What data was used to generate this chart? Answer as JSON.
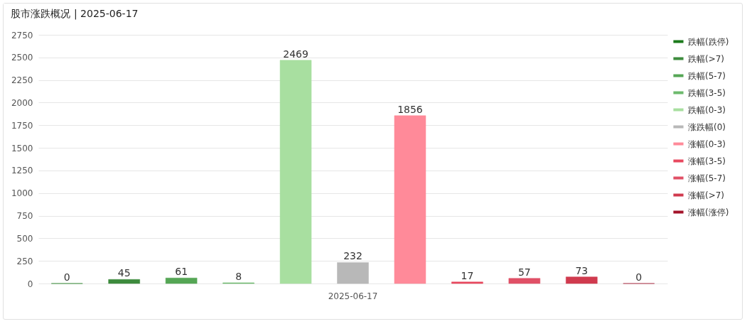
{
  "chart_data": {
    "type": "bar",
    "title": "股市涨跌概况 | 2025-06-17",
    "categories": [
      "2025-06-17"
    ],
    "series": [
      {
        "name": "跌幅(跌停)",
        "color": "#1a7a1a",
        "values": [
          0
        ]
      },
      {
        "name": "跌幅(>7)",
        "color": "#3d8b3d",
        "values": [
          45
        ]
      },
      {
        "name": "跌幅(5-7)",
        "color": "#55a655",
        "values": [
          61
        ]
      },
      {
        "name": "跌幅(3-5)",
        "color": "#6dba6d",
        "values": [
          8
        ]
      },
      {
        "name": "跌幅(0-3)",
        "color": "#a8dfa0",
        "values": [
          2469
        ]
      },
      {
        "name": "涨跌幅(0)",
        "color": "#b8b8b8",
        "values": [
          232
        ]
      },
      {
        "name": "涨幅(0-3)",
        "color": "#ff8a99",
        "values": [
          1856
        ]
      },
      {
        "name": "涨幅(3-5)",
        "color": "#e8485f",
        "values": [
          17
        ]
      },
      {
        "name": "涨幅(5-7)",
        "color": "#e05066",
        "values": [
          57
        ]
      },
      {
        "name": "涨幅(>7)",
        "color": "#d03a4e",
        "values": [
          73
        ]
      },
      {
        "name": "涨幅(涨停)",
        "color": "#a3132a",
        "values": [
          0
        ]
      }
    ],
    "ylim": [
      0,
      2750
    ],
    "yticks": [
      0,
      250,
      500,
      750,
      1000,
      1250,
      1500,
      1750,
      2000,
      2250,
      2500,
      2750
    ],
    "grid": "y",
    "legend": "right",
    "data_labels": true
  }
}
